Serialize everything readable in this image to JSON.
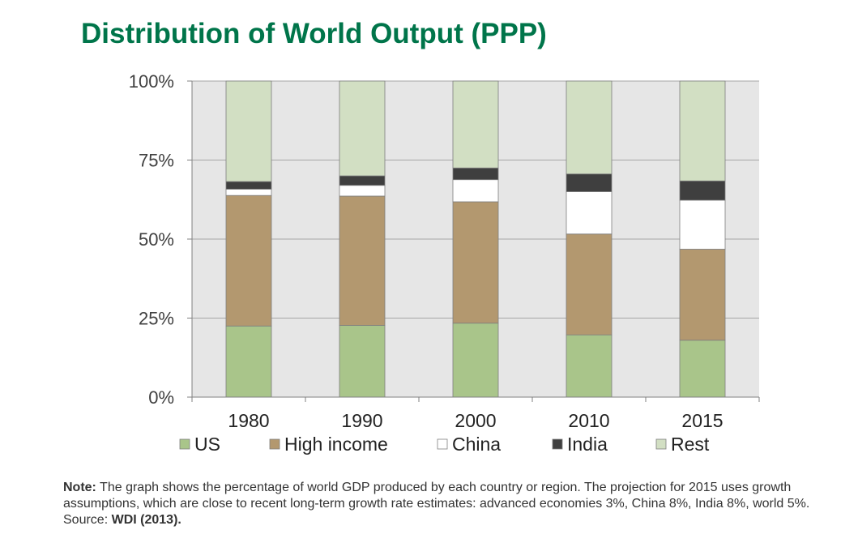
{
  "title": "Distribution of World Output (PPP)",
  "note": {
    "label": "Note:",
    "text": " The graph shows the percentage of world GDP produced by each country or region. The projection for 2015 uses growth assumptions, which are close to recent long-term growth rate estimates: advanced economies 3%, China 8%, India 8%, world 5%. Source: ",
    "source": "WDI (2013)."
  },
  "chart_data": {
    "type": "bar",
    "stacked": true,
    "categories": [
      "1980",
      "1990",
      "2000",
      "2010",
      "2015"
    ],
    "series": [
      {
        "name": "US",
        "color": "#a9c58a",
        "values": [
          22.5,
          22.7,
          23.4,
          19.7,
          18.0
        ]
      },
      {
        "name": "High income",
        "color": "#b3986f",
        "values": [
          41.3,
          40.9,
          38.4,
          31.9,
          28.8
        ]
      },
      {
        "name": "China",
        "color": "#ffffff",
        "values": [
          2.0,
          3.4,
          7.0,
          13.4,
          15.5
        ]
      },
      {
        "name": "India",
        "color": "#3f3f3f",
        "values": [
          2.4,
          3.0,
          3.7,
          5.6,
          6.1
        ]
      },
      {
        "name": "Rest",
        "color": "#d2dfc3",
        "values": [
          31.8,
          30.0,
          27.5,
          29.4,
          31.6
        ]
      }
    ],
    "ylim": [
      0,
      100
    ],
    "yticks": [
      0,
      25,
      50,
      75,
      100
    ],
    "ytick_labels": [
      "0%",
      "25%",
      "50%",
      "75%",
      "100%"
    ],
    "grid": true,
    "legend": "bottom"
  }
}
